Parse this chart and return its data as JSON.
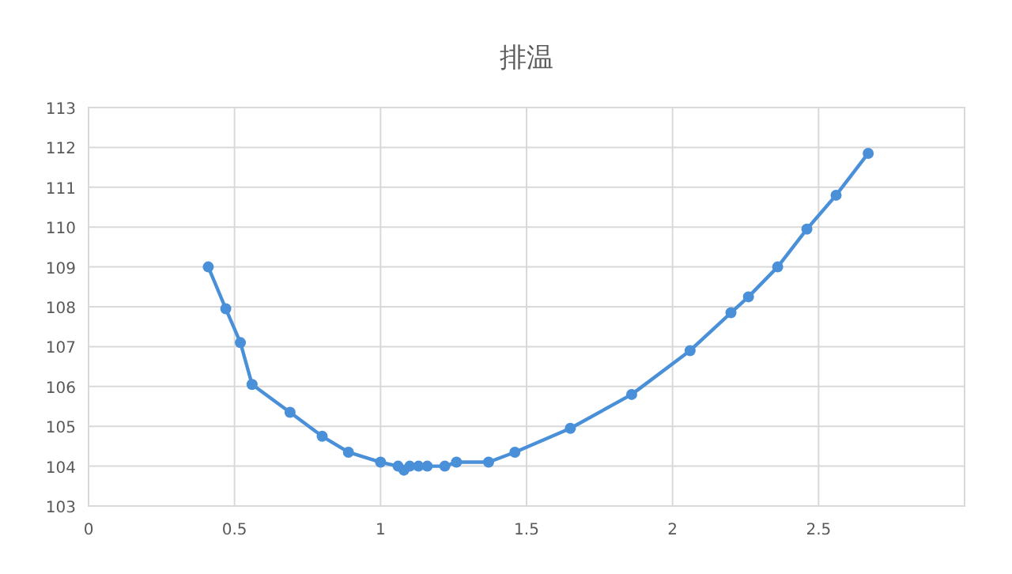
{
  "chart_data": {
    "type": "line",
    "title": "排温",
    "x": [
      0.41,
      0.47,
      0.52,
      0.56,
      0.69,
      0.8,
      0.89,
      1.0,
      1.06,
      1.08,
      1.1,
      1.13,
      1.16,
      1.22,
      1.26,
      1.37,
      1.46,
      1.65,
      1.86,
      2.06,
      2.2,
      2.26,
      2.36,
      2.46,
      2.56,
      2.67
    ],
    "series": [
      {
        "color": "#4a90d9",
        "values": [
          109.0,
          107.95,
          107.1,
          106.05,
          105.35,
          104.75,
          104.35,
          104.1,
          104.0,
          103.9,
          104.0,
          104.0,
          104.0,
          104.0,
          104.1,
          104.1,
          104.35,
          104.95,
          105.8,
          106.9,
          107.85,
          108.25,
          109.0,
          109.95,
          110.8,
          111.85
        ]
      }
    ],
    "xlim": [
      0,
      3
    ],
    "xticks": [
      0,
      0.5,
      1,
      1.5,
      2,
      2.5
    ],
    "ylim": [
      103,
      113
    ],
    "yticks": [
      103,
      104,
      105,
      106,
      107,
      108,
      109,
      110,
      111,
      112,
      113
    ],
    "grid": true,
    "marker": "circle",
    "line_style": "solid"
  }
}
